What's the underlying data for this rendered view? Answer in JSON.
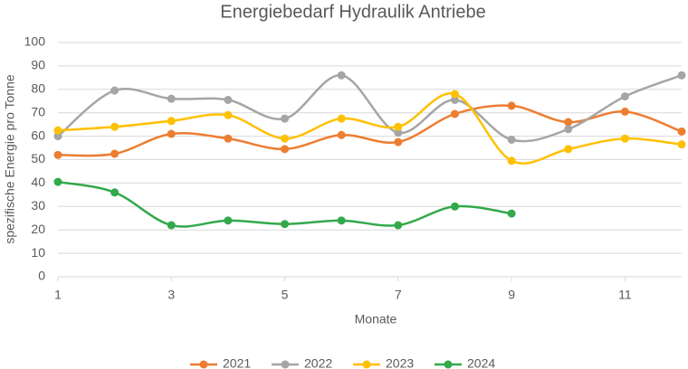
{
  "chart_data": {
    "type": "line",
    "title": "Energiebedarf Hydraulik Antriebe",
    "x_label": "Monate",
    "y_label": "spezifische Energie pro Tonne",
    "x": [
      1,
      2,
      3,
      4,
      5,
      6,
      7,
      8,
      9,
      10,
      11,
      12
    ],
    "xlim": [
      1,
      12
    ],
    "xticks": [
      1,
      3,
      5,
      7,
      9,
      11
    ],
    "ylim": [
      0,
      100
    ],
    "yticks": [
      0,
      10,
      20,
      30,
      40,
      50,
      60,
      70,
      80,
      90,
      100
    ],
    "grid": true,
    "smooth": true,
    "legend": "bottom",
    "series": [
      {
        "name": "2021",
        "color": "#ed7d31",
        "values": [
          52,
          52.5,
          61,
          59,
          54.5,
          60.5,
          57.5,
          69.5,
          73,
          66,
          70.5,
          62
        ]
      },
      {
        "name": "2022",
        "color": "#a5a5a5",
        "values": [
          60,
          79.5,
          76,
          75.5,
          67.5,
          86,
          61.5,
          75.5,
          58.5,
          63,
          77,
          86
        ]
      },
      {
        "name": "2023",
        "color": "#ffc000",
        "values": [
          62.5,
          64,
          66.5,
          69,
          59,
          67.5,
          64,
          78,
          49.5,
          54.5,
          59,
          56.5
        ]
      },
      {
        "name": "2024",
        "color": "#33a94b",
        "values": [
          40.5,
          36,
          22,
          24,
          22.5,
          24,
          22,
          30,
          27,
          null,
          null,
          null
        ]
      }
    ]
  }
}
